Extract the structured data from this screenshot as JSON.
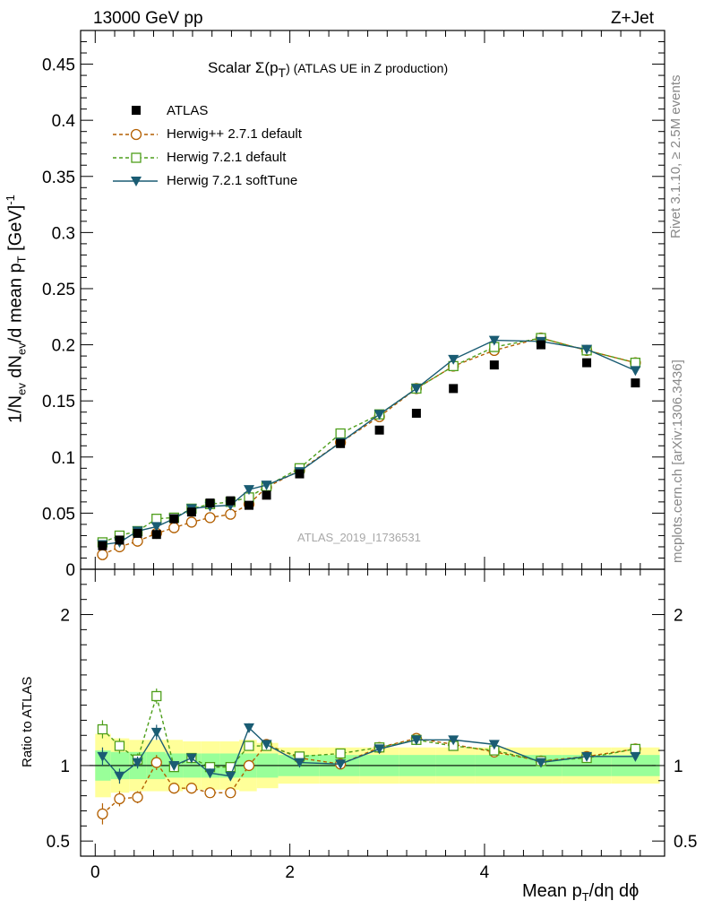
{
  "header": {
    "energy": "13000 GeV pp",
    "process": "Z+Jet"
  },
  "sidebar": {
    "rivet": "Rivet 3.1.10, ≥ 2.5M events",
    "mcplots": "mcplots.cern.ch [arXiv:1306.3436]"
  },
  "watermark": "ATLAS_2019_I1736531",
  "title": {
    "prefix": "Scalar Σ(p",
    "sub": "T",
    "suffix": ") (ATLAS UE in Z production)"
  },
  "axes": {
    "xlabel": "Mean p_T/dη dϕ",
    "ylabel": "1/N_ev dN_ev/d mean p_T [GeV]^-1",
    "ratio_ylabel": "Ratio to ATLAS"
  },
  "colors": {
    "data": "#000000",
    "herwigpp": "#b35f00",
    "herwig721": "#4d9e1a",
    "softtune": "#1a5c73",
    "band_outer": "#ffff99",
    "band_inner": "#99ff99"
  },
  "chart_data": [
    {
      "type": "scatter",
      "panel": "main",
      "xlim": [
        -0.15,
        5.85
      ],
      "ylim": [
        0,
        0.48
      ],
      "x_ticks": [
        0,
        2,
        4
      ],
      "y_ticks": [
        0,
        0.05,
        0.1,
        0.15,
        0.2,
        0.25,
        0.3,
        0.35,
        0.4,
        0.45
      ],
      "y_tick_labels": [
        "0",
        "0.05",
        "0.1",
        "0.15",
        "0.2",
        "0.25",
        "0.3",
        "0.35",
        "0.4",
        "0.45"
      ],
      "legend_position": "top-left",
      "x": [
        0.075,
        0.25,
        0.435,
        0.63,
        0.81,
        0.99,
        1.18,
        1.39,
        1.58,
        1.76,
        2.1,
        2.52,
        2.92,
        3.3,
        3.68,
        4.1,
        4.58,
        5.05,
        5.55
      ],
      "series": [
        {
          "name": "ATLAS",
          "marker": "square",
          "values": [
            0.021,
            0.026,
            0.032,
            0.031,
            0.045,
            0.051,
            0.059,
            0.061,
            0.057,
            0.066,
            0.085,
            0.112,
            0.124,
            0.139,
            0.161,
            0.182,
            0.2,
            0.184,
            0.166
          ]
        },
        {
          "name": "Herwig++ 2.7.1 default",
          "marker": "circle",
          "values": [
            0.013,
            0.02,
            0.025,
            0.032,
            0.037,
            0.042,
            0.046,
            0.049,
            0.058,
            0.073,
            0.088,
            0.113,
            0.136,
            0.161,
            0.181,
            0.195,
            0.206,
            0.195,
            0.184
          ]
        },
        {
          "name": "Herwig 7.2.1 default",
          "marker": "open-square",
          "values": [
            0.024,
            0.03,
            0.034,
            0.045,
            0.046,
            0.054,
            0.058,
            0.06,
            0.064,
            0.074,
            0.09,
            0.121,
            0.138,
            0.161,
            0.181,
            0.198,
            0.206,
            0.195,
            0.184
          ]
        },
        {
          "name": "Herwig 7.2.1 softTune",
          "marker": "triangle-down",
          "values": [
            0.022,
            0.024,
            0.034,
            0.038,
            0.045,
            0.054,
            0.056,
            0.057,
            0.071,
            0.075,
            0.087,
            0.113,
            0.138,
            0.161,
            0.187,
            0.204,
            0.203,
            0.196,
            0.177
          ]
        }
      ]
    },
    {
      "type": "line",
      "panel": "ratio",
      "ylim": [
        0.4,
        2.3
      ],
      "y_ticks": [
        0.5,
        1,
        2
      ],
      "y_tick_labels": [
        "0.5",
        "1",
        "2"
      ],
      "x_tick_labels": [
        "0",
        "2",
        "4"
      ],
      "band_edges": [
        0,
        0.16,
        0.35,
        0.53,
        0.72,
        0.9,
        1.09,
        1.28,
        1.48,
        1.66,
        1.88,
        2.3,
        2.72,
        3.12,
        3.5,
        3.9,
        4.35,
        4.8,
        5.3,
        5.8
      ],
      "band_inner": [
        0.1,
        0.09,
        0.09,
        0.09,
        0.08,
        0.08,
        0.08,
        0.08,
        0.08,
        0.08,
        0.07,
        0.07,
        0.07,
        0.07,
        0.07,
        0.07,
        0.07,
        0.07,
        0.07
      ],
      "band_outer": [
        0.21,
        0.18,
        0.17,
        0.17,
        0.17,
        0.16,
        0.16,
        0.16,
        0.17,
        0.15,
        0.12,
        0.12,
        0.12,
        0.12,
        0.12,
        0.12,
        0.12,
        0.12,
        0.12
      ],
      "series": [
        {
          "name": "Herwig++ 2.7.1 default",
          "values": [
            0.68,
            0.78,
            0.79,
            1.02,
            0.85,
            0.85,
            0.82,
            0.82,
            1.0,
            1.14,
            1.05,
            1.01,
            1.12,
            1.18,
            1.14,
            1.09,
            1.03,
            1.06,
            1.11
          ],
          "errors": [
            0.07,
            0.05,
            0.04,
            0.05,
            0.03,
            0.03,
            0.03,
            0.03,
            0.03,
            0.02,
            0.01,
            0.01,
            0.01,
            0.01,
            0.01,
            0.01,
            0.01,
            0.01,
            0.01
          ]
        },
        {
          "name": "Herwig 7.2.1 default",
          "values": [
            1.24,
            1.13,
            1.04,
            1.46,
            0.99,
            1.05,
            0.99,
            0.99,
            1.13,
            1.13,
            1.06,
            1.08,
            1.12,
            1.17,
            1.13,
            1.1,
            1.03,
            1.05,
            1.11
          ],
          "errors": [
            0.06,
            0.05,
            0.04,
            0.05,
            0.03,
            0.03,
            0.03,
            0.03,
            0.03,
            0.02,
            0.01,
            0.01,
            0.01,
            0.01,
            0.01,
            0.01,
            0.01,
            0.01,
            0.01
          ]
        },
        {
          "name": "Herwig 7.2.1 softTune",
          "values": [
            1.06,
            0.93,
            1.02,
            1.22,
            1.0,
            1.05,
            0.95,
            0.93,
            1.25,
            1.14,
            1.02,
            1.01,
            1.11,
            1.17,
            1.17,
            1.14,
            1.02,
            1.06,
            1.06
          ],
          "errors": [
            0.06,
            0.05,
            0.04,
            0.05,
            0.03,
            0.03,
            0.03,
            0.03,
            0.03,
            0.02,
            0.01,
            0.01,
            0.01,
            0.01,
            0.01,
            0.01,
            0.01,
            0.01,
            0.01
          ]
        }
      ]
    }
  ]
}
